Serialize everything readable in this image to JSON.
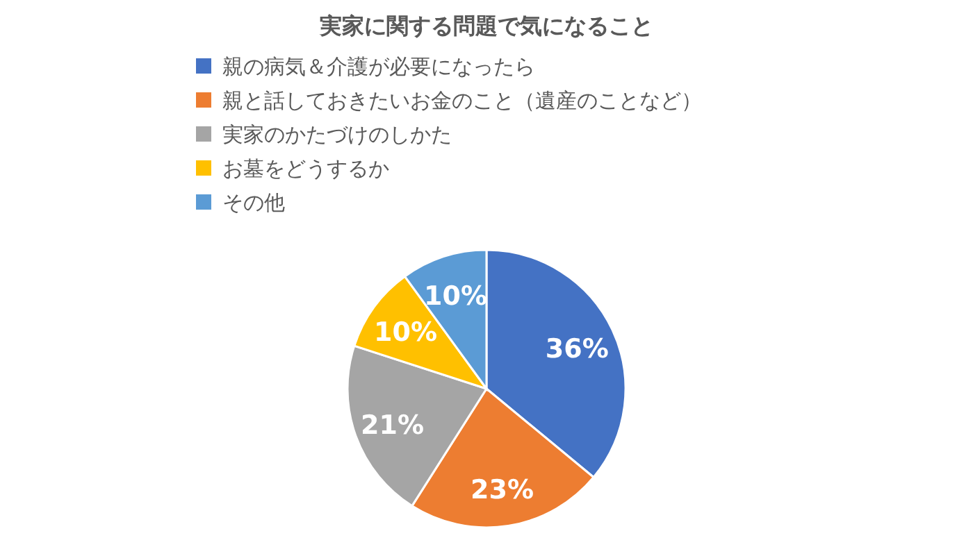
{
  "chart_data": {
    "type": "pie",
    "title": "実家に関する問題で気になること",
    "categories": [
      "親の病気＆介護が必要になったら",
      "親と話しておきたいお金のこと（遺産のことなど）",
      "実家のかたづけのしかた",
      "お墓をどうするか",
      "その他"
    ],
    "values": [
      36,
      23,
      21,
      10,
      10
    ],
    "colors": [
      "#4472c4",
      "#ed7d31",
      "#a5a5a5",
      "#ffc000",
      "#5b9bd5"
    ],
    "value_labels": [
      "36%",
      "23%",
      "21%",
      "10%",
      "10%"
    ],
    "legend": "top"
  }
}
